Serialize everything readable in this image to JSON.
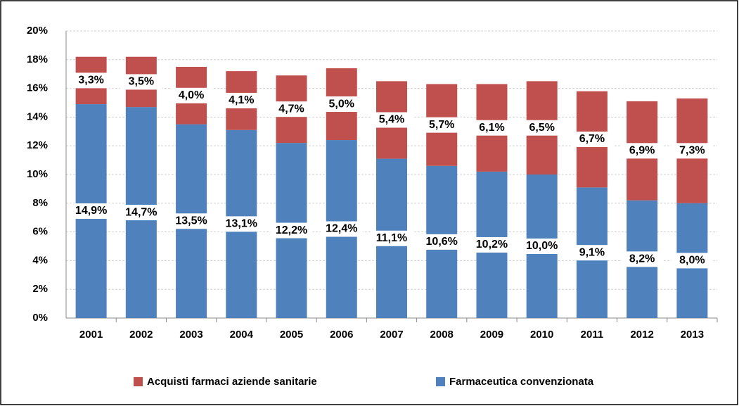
{
  "chart_data": {
    "type": "stacked_bar",
    "categories": [
      "2001",
      "2002",
      "2003",
      "2004",
      "2005",
      "2006",
      "2007",
      "2008",
      "2009",
      "2010",
      "2011",
      "2012",
      "2013"
    ],
    "series": [
      {
        "name": "Farmaceutica convenzionata",
        "color": "#4f81bd",
        "values": [
          14.9,
          14.7,
          13.5,
          13.1,
          12.2,
          12.4,
          11.1,
          10.6,
          10.2,
          10.0,
          9.1,
          8.2,
          8.0
        ],
        "value_labels": [
          "14,9%",
          "14,7%",
          "13,5%",
          "13,1%",
          "12,2%",
          "12,4%",
          "11,1%",
          "10,6%",
          "10,2%",
          "10,0%",
          "9,1%",
          "8,2%",
          "8,0%"
        ]
      },
      {
        "name": "Acquisti farmaci aziende sanitarie",
        "color": "#c0504d",
        "values": [
          3.3,
          3.5,
          4.0,
          4.1,
          4.7,
          5.0,
          5.4,
          5.7,
          6.1,
          6.5,
          6.7,
          6.9,
          7.3
        ],
        "value_labels": [
          "3,3%",
          "3,5%",
          "4,0%",
          "4,1%",
          "4,7%",
          "5,0%",
          "5,4%",
          "5,7%",
          "6,1%",
          "6,5%",
          "6,7%",
          "6,9%",
          "7,3%"
        ]
      }
    ],
    "ylim": [
      0,
      20
    ],
    "yticks": [
      {
        "value": 0,
        "label": "0%"
      },
      {
        "value": 2,
        "label": "2%"
      },
      {
        "value": 4,
        "label": "4%"
      },
      {
        "value": 6,
        "label": "6%"
      },
      {
        "value": 8,
        "label": "8%"
      },
      {
        "value": 10,
        "label": "10%"
      },
      {
        "value": 12,
        "label": "12%"
      },
      {
        "value": 14,
        "label": "14%"
      },
      {
        "value": 16,
        "label": "16%"
      },
      {
        "value": 18,
        "label": "18%"
      },
      {
        "value": 20,
        "label": "20%"
      }
    ],
    "grid": true
  }
}
